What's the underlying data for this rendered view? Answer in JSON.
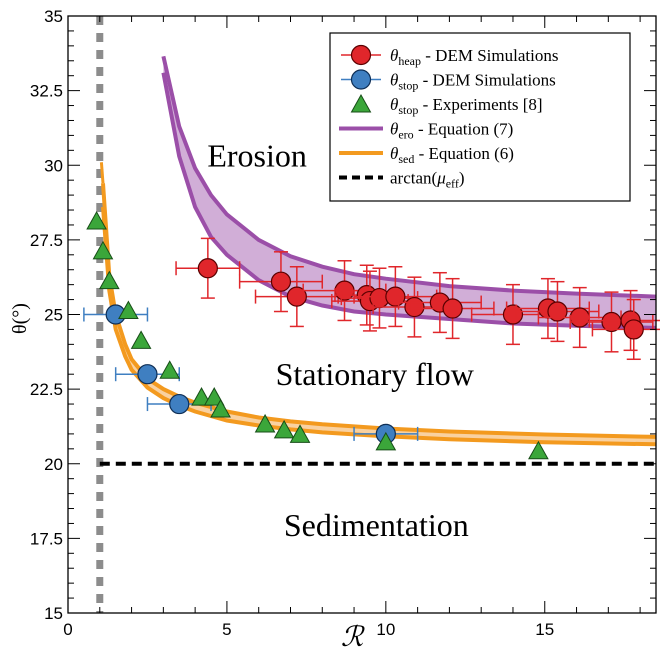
{
  "chart_data": {
    "type": "scatter",
    "title": "",
    "xlabel": "ℛ",
    "ylabel": "θ(°)",
    "xlim": [
      0,
      18.5
    ],
    "ylim": [
      15,
      35
    ],
    "xticks": [
      0,
      5,
      10,
      15
    ],
    "yticks": [
      15,
      17.5,
      20,
      22.5,
      25,
      27.5,
      30,
      32.5,
      35
    ],
    "ytick_labels": [
      "15",
      "17.5",
      "20",
      "22.5",
      "25",
      "27.5",
      "30",
      "32.5",
      "35"
    ],
    "grid": false,
    "legend_position": "top-right",
    "colors": {
      "heap": "#e0262b",
      "stop_dem": "#3f7fc1",
      "stop_exp": "#3ba63a",
      "ero": "#9b4fa8",
      "ero_fill": "#c9a0d0",
      "sed": "#f39a1f",
      "sed_fill": "#f8c98f",
      "mu": "#000000",
      "vline": "#8c8c8c"
    },
    "region_labels": {
      "erosion": "Erosion",
      "stationary": "Stationary flow",
      "sedimentation": "Sedimentation"
    },
    "legend": [
      {
        "symbol": "θ",
        "sub": "heap",
        "text": " - DEM Simulations"
      },
      {
        "symbol": "θ",
        "sub": "stop",
        "text": " - DEM Simulations"
      },
      {
        "symbol": "θ",
        "sub": "stop",
        "text": " - Experiments [8]"
      },
      {
        "symbol": "θ",
        "sub": "ero",
        "text": " - Equation (7)"
      },
      {
        "symbol": "θ",
        "sub": "sed",
        "text": " - Equation (6)"
      },
      {
        "symbol": "arctan(μ",
        "sub": "eff",
        "text": ")"
      }
    ],
    "series": [
      {
        "name": "θheap - DEM Simulations",
        "x": [
          4.4,
          6.7,
          7.2,
          8.7,
          9.4,
          9.5,
          9.8,
          10.3,
          10.9,
          11.7,
          12.1,
          14.0,
          15.1,
          15.4,
          16.1,
          17.1,
          17.7,
          17.8
        ],
        "y": [
          26.55,
          26.1,
          25.6,
          25.8,
          25.65,
          25.45,
          25.55,
          25.6,
          25.25,
          25.4,
          25.2,
          25.0,
          25.2,
          25.1,
          24.9,
          24.75,
          24.8,
          24.5
        ],
        "xerr": [
          1.0,
          1.3,
          1.3,
          1.3,
          1.0,
          1.2,
          1.2,
          1.3,
          1.3,
          1.3,
          1.3,
          1.3,
          1.3,
          1.3,
          1.3,
          1.3,
          1.3,
          1.3
        ],
        "yerr": [
          1.0,
          1.0,
          1.0,
          1.0,
          1.0,
          1.0,
          1.0,
          1.0,
          1.0,
          1.0,
          1.0,
          1.0,
          1.0,
          1.0,
          1.0,
          1.0,
          1.0,
          1.0
        ]
      },
      {
        "name": "θstop - DEM Simulations",
        "x": [
          1.5,
          2.5,
          3.5,
          10.0
        ],
        "y": [
          25.0,
          23.0,
          22.0,
          21.0
        ],
        "xerr": [
          1.0,
          1.0,
          1.0,
          1.0
        ]
      },
      {
        "name": "θstop - Experiments [8]",
        "x": [
          0.9,
          1.1,
          1.3,
          1.9,
          2.3,
          3.2,
          4.2,
          4.6,
          4.8,
          6.2,
          6.8,
          7.3,
          10.0,
          14.8
        ],
        "y": [
          28.1,
          27.1,
          26.1,
          25.1,
          24.1,
          23.1,
          22.2,
          22.2,
          21.8,
          21.3,
          21.1,
          20.95,
          20.7,
          20.4
        ]
      },
      {
        "name": "θero - Equation (7)",
        "x": [
          3.0,
          3.5,
          4.0,
          4.5,
          5.0,
          6.0,
          7.0,
          8.0,
          9.0,
          10.0,
          12.0,
          14.0,
          16.0,
          18.5
        ],
        "upper": [
          33.65,
          31.3,
          29.9,
          29.0,
          28.35,
          27.5,
          26.95,
          26.6,
          26.35,
          26.2,
          25.95,
          25.8,
          25.7,
          25.6
        ],
        "lower": [
          33.1,
          30.3,
          28.6,
          27.6,
          27.0,
          26.15,
          25.6,
          25.3,
          25.1,
          25.0,
          24.85,
          24.7,
          24.62,
          24.55
        ]
      },
      {
        "name": "θsed - Equation (6)",
        "x": [
          1.1,
          1.3,
          1.5,
          1.8,
          2.0,
          2.5,
          3.0,
          3.5,
          4.0,
          5.0,
          6.0,
          7.0,
          8.0,
          10.0,
          12.0,
          15.0,
          18.5
        ],
        "upper": [
          29.4,
          26.3,
          25.0,
          24.0,
          23.5,
          22.85,
          22.5,
          22.25,
          22.05,
          21.75,
          21.55,
          21.42,
          21.32,
          21.18,
          21.08,
          20.98,
          20.9
        ],
        "lower": [
          28.6,
          25.8,
          24.5,
          23.6,
          23.15,
          22.55,
          22.2,
          21.95,
          21.75,
          21.45,
          21.28,
          21.15,
          21.05,
          20.92,
          20.82,
          20.72,
          20.65
        ]
      },
      {
        "name": "arctan(μeff)",
        "x": [
          1.0,
          18.5
        ],
        "y": [
          20.0,
          20.0
        ]
      }
    ],
    "vertical_line_x": 1.0
  }
}
